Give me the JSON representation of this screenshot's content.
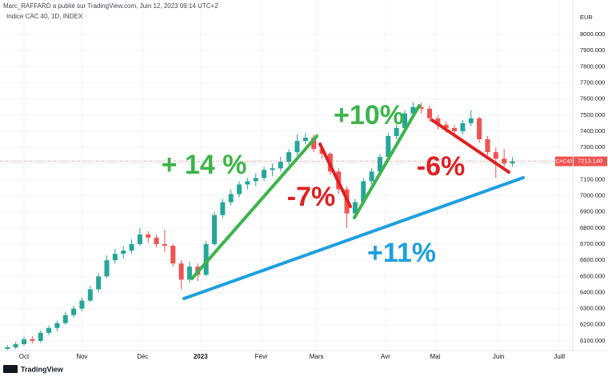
{
  "header": "Marc_RAFFARD a publié sur TradingView.com, Juin 12, 2023 09:14 UTC+2",
  "brand": "TradingView",
  "chart_data": {
    "type": "candlestick",
    "title": "Indice CAC 40, 1D, INDEX",
    "currency": "EUR",
    "symbol": "CAC40",
    "last_price": {
      "value": 7213.14,
      "label": "7213.140"
    },
    "up_color": "#26a69a",
    "down_color": "#ef5350",
    "grid": true,
    "xlim": [
      -8.7,
      198.6
    ],
    "ylim": [
      6040,
      8144
    ],
    "xticks": [
      {
        "value": 0,
        "label": "Oct"
      },
      {
        "value": 21,
        "label": "Nov"
      },
      {
        "value": 43,
        "label": "Déc"
      },
      {
        "value": 64,
        "label": "2023"
      },
      {
        "value": 86,
        "label": "Févr"
      },
      {
        "value": 106,
        "label": "Mars"
      },
      {
        "value": 131,
        "label": "Avr"
      },
      {
        "value": 149,
        "label": "Mai"
      },
      {
        "value": 172,
        "label": "Juin"
      },
      {
        "value": 194,
        "label": "Juill"
      }
    ],
    "yticks": [
      {
        "value": 6100,
        "label": "6100.000"
      },
      {
        "value": 6200,
        "label": "6200.000"
      },
      {
        "value": 6300,
        "label": "6300.000"
      },
      {
        "value": 6400,
        "label": "6400.000"
      },
      {
        "value": 6500,
        "label": "6500.000"
      },
      {
        "value": 6600,
        "label": "6600.000"
      },
      {
        "value": 6700,
        "label": "6700.000"
      },
      {
        "value": 6800,
        "label": "6800.000"
      },
      {
        "value": 6900,
        "label": "6900.000"
      },
      {
        "value": 7000,
        "label": "7000.000"
      },
      {
        "value": 7100,
        "label": "7100.000"
      },
      {
        "value": 7200,
        "label": "7200.000"
      },
      {
        "value": 7300,
        "label": "7300.000"
      },
      {
        "value": 7400,
        "label": "7400.000"
      },
      {
        "value": 7500,
        "label": "7500.000"
      },
      {
        "value": 7600,
        "label": "7600.000"
      },
      {
        "value": 7700,
        "label": "7700.000"
      },
      {
        "value": 7800,
        "label": "7800.000"
      },
      {
        "value": 7900,
        "label": "7900.000"
      },
      {
        "value": 8000,
        "label": "8000.000"
      }
    ],
    "x": [
      -6,
      -3,
      0,
      3,
      6,
      9,
      12,
      15,
      18,
      21,
      24,
      27,
      30,
      33,
      36,
      39,
      42,
      45,
      48,
      51,
      54,
      57,
      60,
      63,
      66,
      69,
      72,
      75,
      78,
      81,
      84,
      87,
      90,
      93,
      96,
      99,
      102,
      105,
      108,
      111,
      114,
      117,
      120,
      123,
      126,
      129,
      132,
      135,
      138,
      141,
      144,
      147,
      150,
      153,
      156,
      159,
      162,
      165,
      168,
      171,
      174,
      177
    ],
    "open": [
      6050,
      6060,
      6080,
      6110,
      6100,
      6150,
      6180,
      6210,
      6260,
      6300,
      6350,
      6420,
      6500,
      6600,
      6640,
      6660,
      6700,
      6760,
      6740,
      6700,
      6690,
      6580,
      6480,
      6560,
      6510,
      6700,
      6880,
      6960,
      7010,
      7070,
      7090,
      7110,
      7160,
      7170,
      7210,
      7270,
      7340,
      7360,
      7290,
      7260,
      7150,
      7040,
      6890,
      6960,
      7090,
      7150,
      7240,
      7370,
      7420,
      7510,
      7550,
      7540,
      7480,
      7440,
      7420,
      7400,
      7450,
      7480,
      7350,
      7270,
      7230,
      7200
    ],
    "high": [
      6075,
      6095,
      6125,
      6130,
      6165,
      6195,
      6225,
      6280,
      6320,
      6370,
      6440,
      6520,
      6630,
      6670,
      6690,
      6730,
      6800,
      6780,
      6760,
      6790,
      6700,
      6600,
      6590,
      6580,
      6720,
      6900,
      6980,
      7040,
      7090,
      7110,
      7140,
      7180,
      7200,
      7240,
      7290,
      7380,
      7390,
      7380,
      7310,
      7270,
      7170,
      7060,
      6980,
      7110,
      7170,
      7260,
      7390,
      7440,
      7530,
      7580,
      7580,
      7560,
      7500,
      7460,
      7440,
      7470,
      7530,
      7490,
      7370,
      7300,
      7290,
      7240
    ],
    "low": [
      6045,
      6050,
      6070,
      6085,
      6090,
      6135,
      6160,
      6200,
      6245,
      6285,
      6340,
      6400,
      6490,
      6580,
      6610,
      6640,
      6690,
      6710,
      6680,
      6650,
      6560,
      6420,
      6460,
      6470,
      6500,
      6690,
      6860,
      6940,
      6990,
      7040,
      7060,
      7090,
      7120,
      7150,
      7190,
      7250,
      7320,
      7270,
      7230,
      7130,
      7010,
      6800,
      6860,
      6940,
      7070,
      7130,
      7220,
      7350,
      7400,
      7490,
      7510,
      7460,
      7410,
      7390,
      7370,
      7380,
      7430,
      7330,
      7250,
      7110,
      7180,
      7180
    ],
    "close": [
      6060,
      6080,
      6110,
      6100,
      6150,
      6180,
      6210,
      6260,
      6300,
      6350,
      6420,
      6500,
      6600,
      6640,
      6660,
      6700,
      6760,
      6740,
      6700,
      6690,
      6580,
      6480,
      6560,
      6510,
      6700,
      6880,
      6960,
      7010,
      7070,
      7090,
      7110,
      7160,
      7170,
      7210,
      7270,
      7340,
      7360,
      7290,
      7260,
      7150,
      7040,
      6890,
      6960,
      7090,
      7150,
      7240,
      7370,
      7420,
      7510,
      7550,
      7540,
      7480,
      7440,
      7420,
      7400,
      7450,
      7480,
      7350,
      7270,
      7230,
      7200,
      7213.14
    ],
    "annotations": [
      "+ 14 %",
      "-7%",
      "+10%",
      "-6%",
      "+11%"
    ]
  }
}
